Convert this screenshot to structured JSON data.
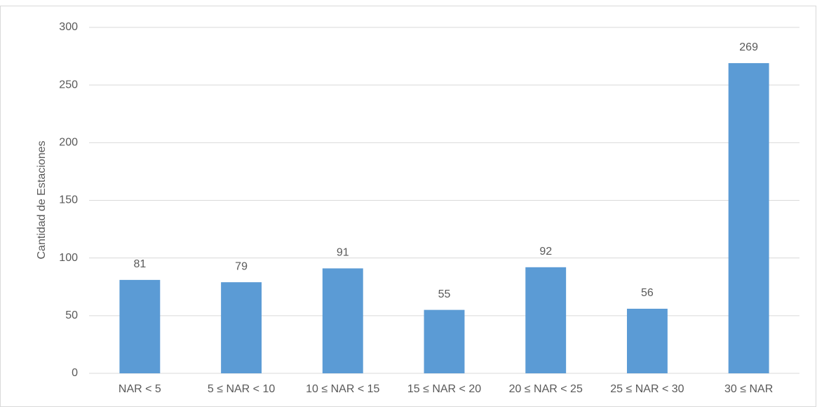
{
  "chart_data": {
    "type": "bar",
    "y_label": "Cantidad de Estaciones",
    "categories": [
      "NAR < 5",
      "5 ≤ NAR < 10",
      "10 ≤ NAR < 15",
      "15 ≤ NAR < 20",
      "20 ≤ NAR < 25",
      "25 ≤ NAR < 30",
      "30 ≤ NAR"
    ],
    "values": [
      81,
      79,
      91,
      55,
      92,
      56,
      269
    ],
    "color": "#5b9bd5",
    "ylim": [
      0,
      300
    ],
    "yticks": [
      0,
      50,
      100,
      150,
      200,
      250,
      300
    ],
    "grid": true
  }
}
